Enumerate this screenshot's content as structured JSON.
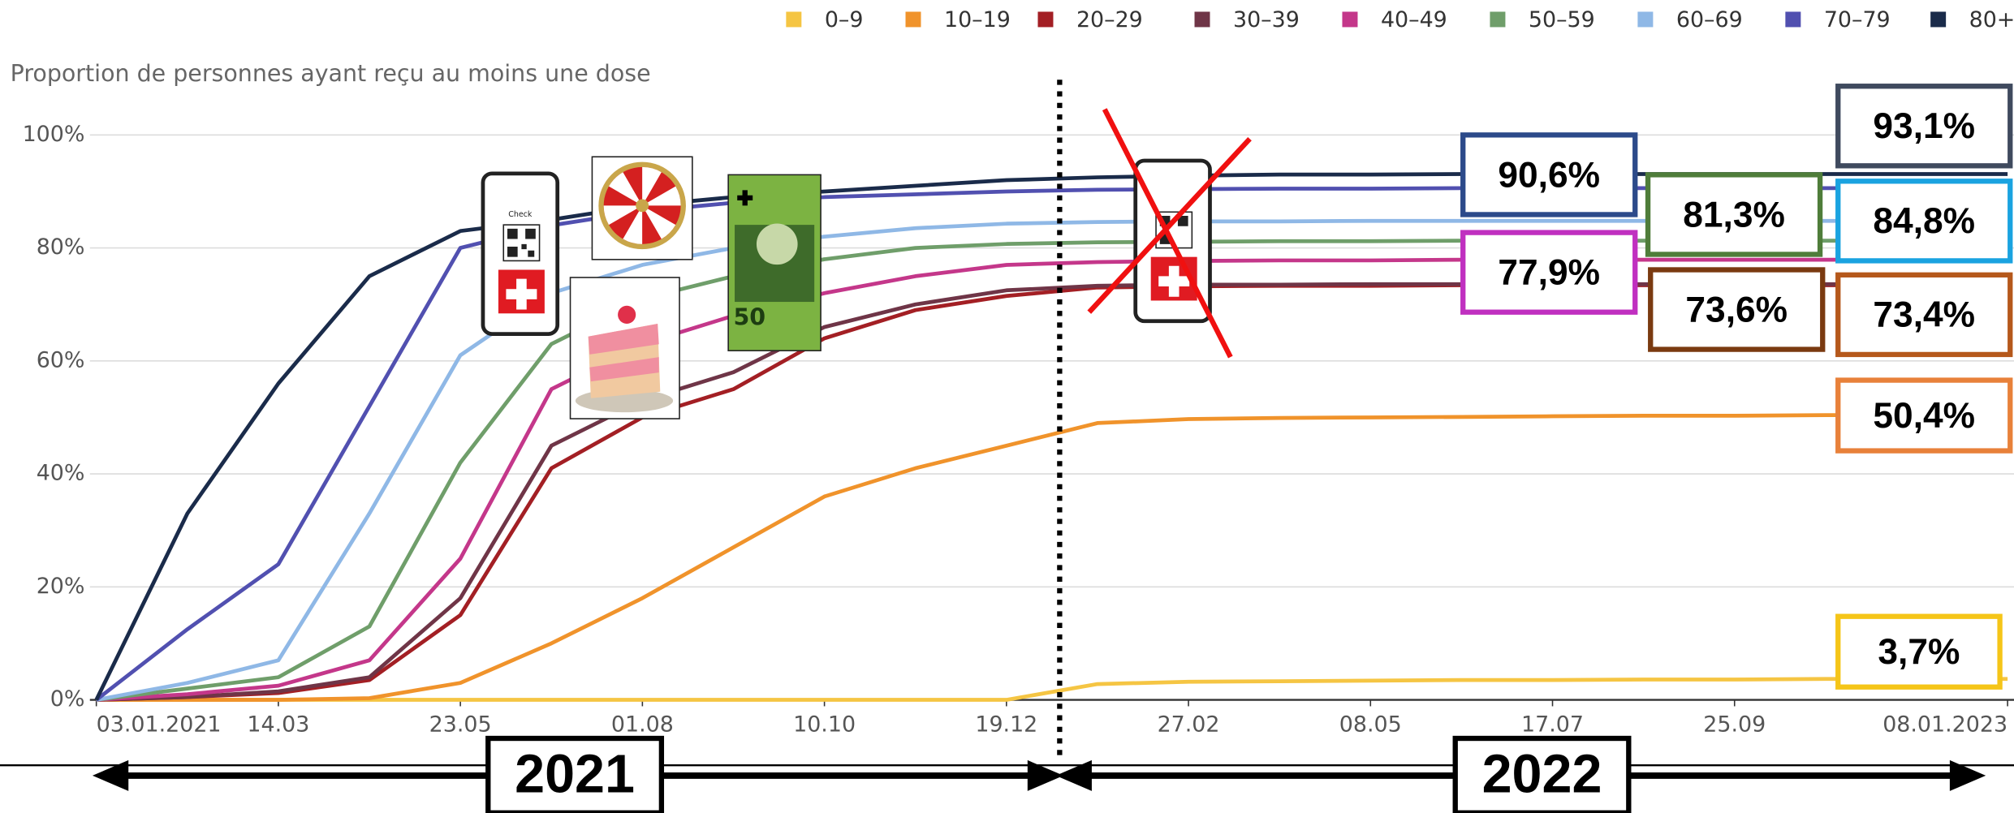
{
  "chart_data": {
    "type": "line",
    "ylabel": "Proportion de personnes ayant reçu au moins une dose",
    "categories": [
      "03.01.2021",
      null,
      "14.03",
      null,
      "23.05",
      null,
      "01.08",
      null,
      "10.10",
      null,
      "19.12",
      null,
      "27.02",
      null,
      "08.05",
      null,
      "17.07",
      null,
      "25.09",
      null,
      null,
      "08.01.2023"
    ],
    "series": [
      {
        "name": "0–9",
        "color": "#f5c543",
        "values": [
          0,
          0,
          0,
          0,
          0,
          0,
          0,
          0,
          0,
          0,
          0,
          2.8,
          3.2,
          3.3,
          3.4,
          3.5,
          3.5,
          3.6,
          3.6,
          3.7,
          3.7,
          3.7
        ]
      },
      {
        "name": "10–19",
        "color": "#f0932b",
        "values": [
          0,
          0,
          0,
          0.3,
          3,
          10,
          18,
          27,
          36,
          41,
          45,
          49,
          49.7,
          49.9,
          50,
          50.1,
          50.2,
          50.3,
          50.3,
          50.4,
          50.4,
          50.4
        ]
      },
      {
        "name": "20–29",
        "color": "#a31f24",
        "values": [
          0,
          0.5,
          1.2,
          3.5,
          15,
          41,
          50,
          55,
          64,
          69,
          71.5,
          73,
          73.2,
          73.3,
          73.3,
          73.4,
          73.4,
          73.4,
          73.4,
          73.4,
          73.4,
          73.4
        ]
      },
      {
        "name": "30–39",
        "color": "#6f3547",
        "values": [
          0,
          0.5,
          1.5,
          4,
          18,
          45,
          53,
          58,
          66,
          70,
          72.5,
          73.3,
          73.5,
          73.5,
          73.6,
          73.6,
          73.6,
          73.6,
          73.6,
          73.6,
          73.6,
          73.6
        ]
      },
      {
        "name": "40–49",
        "color": "#c4378a",
        "values": [
          0,
          1,
          2.5,
          7,
          25,
          55,
          63,
          68,
          72,
          75,
          77,
          77.5,
          77.7,
          77.8,
          77.8,
          77.9,
          77.9,
          77.9,
          77.9,
          77.9,
          77.9,
          77.9
        ]
      },
      {
        "name": "50–59",
        "color": "#6f9e6a",
        "values": [
          0,
          2,
          4,
          13,
          42,
          63,
          71,
          75,
          78,
          80,
          80.7,
          81,
          81.1,
          81.2,
          81.2,
          81.3,
          81.3,
          81.3,
          81.3,
          81.3,
          81.3,
          81.3
        ]
      },
      {
        "name": "60–69",
        "color": "#8fb8e6",
        "values": [
          0,
          3,
          7,
          33,
          61,
          72,
          77,
          80,
          82,
          83.5,
          84.3,
          84.6,
          84.7,
          84.7,
          84.8,
          84.8,
          84.8,
          84.8,
          84.8,
          84.8,
          84.8,
          84.8
        ]
      },
      {
        "name": "70–79",
        "color": "#5150b0",
        "values": [
          0,
          12.5,
          24,
          52,
          80,
          84,
          86.5,
          88,
          89,
          89.5,
          90,
          90.3,
          90.4,
          90.5,
          90.5,
          90.6,
          90.6,
          90.6,
          90.6,
          90.6,
          90.6,
          90.6
        ]
      },
      {
        "name": "80+",
        "color": "#1a2b4a",
        "values": [
          0,
          33,
          56,
          75,
          83,
          85,
          87.5,
          89,
          90,
          91,
          92,
          92.5,
          92.8,
          93,
          93,
          93.1,
          93.1,
          93.1,
          93.1,
          93.1,
          93.1,
          93.1
        ]
      }
    ],
    "ylim": [
      0,
      100
    ],
    "yticks": [
      {
        "value": 0,
        "label": "0%"
      },
      {
        "value": 20,
        "label": "20%"
      },
      {
        "value": 40,
        "label": "40%"
      },
      {
        "value": 60,
        "label": "60%"
      },
      {
        "value": 80,
        "label": "80%"
      },
      {
        "value": 100,
        "label": "100%"
      }
    ],
    "grid": true
  },
  "annotations": [
    {
      "text": "93,1%",
      "color": "#3f4a5e"
    },
    {
      "text": "90,6%",
      "color": "#2c4a8a"
    },
    {
      "text": "81,3%",
      "color": "#4f7d3a"
    },
    {
      "text": "84,8%",
      "color": "#1aa3e0"
    },
    {
      "text": "77,9%",
      "color": "#c030c0"
    },
    {
      "text": "73,6%",
      "color": "#7a3a10"
    },
    {
      "text": "73,4%",
      "color": "#b5581b"
    },
    {
      "text": "50,4%",
      "color": "#e8813a"
    },
    {
      "text": "3,7%",
      "color": "#f5c518"
    }
  ],
  "periods": [
    "2021",
    "2022"
  ]
}
